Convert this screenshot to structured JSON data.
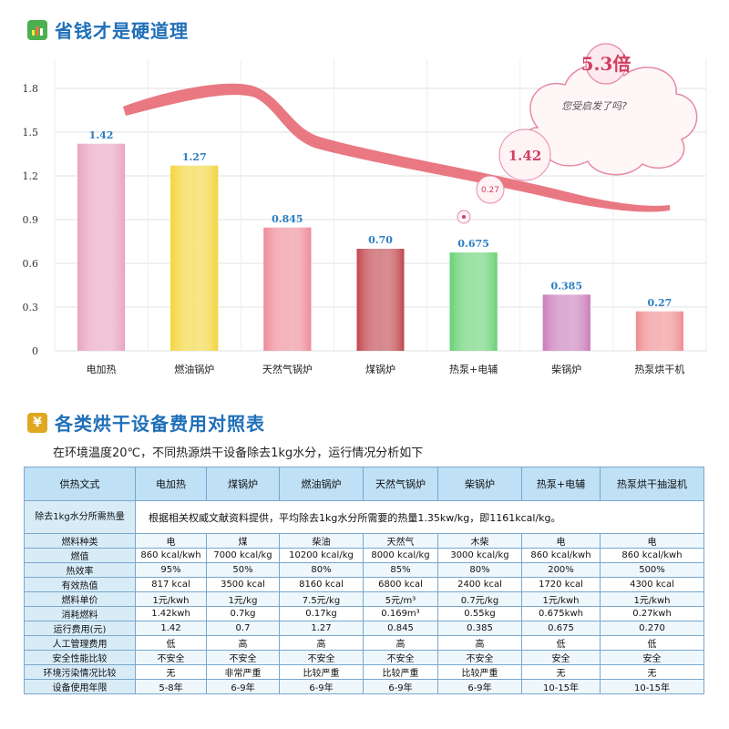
{
  "section1": {
    "title": "省钱才是硬道理",
    "icon": "bar-chart-icon"
  },
  "chart_data": {
    "type": "bar",
    "title": "",
    "xlabel": "",
    "ylabel": "",
    "ylim": [
      0,
      2.0
    ],
    "yticks": [
      0,
      0.3,
      0.6,
      0.9,
      1.2,
      1.5,
      1.8
    ],
    "categories": [
      "电加热",
      "燃油锅炉",
      "天然气锅炉",
      "煤锅炉",
      "热泵+电辅",
      "柴锅炉",
      "热泵烘干机"
    ],
    "values": [
      1.42,
      1.27,
      0.845,
      0.7,
      0.675,
      0.385,
      0.27
    ],
    "value_labels": [
      "1.42",
      "1.27",
      "0.845",
      "0.70",
      "0.675",
      "0.385",
      "0.27"
    ],
    "bar_colors": [
      "#e9a3c1",
      "#f2d53c",
      "#ee8b97",
      "#c0454c",
      "#67d173",
      "#c97cba",
      "#ef8d8f"
    ],
    "grid": true,
    "trend_curve_color": "#e8717b",
    "annotations": {
      "cloud_ratio": "5.3倍",
      "cloud_note": "您受启发了吗?",
      "circle_large": "1.42",
      "circle_small": "0.27"
    }
  },
  "section2": {
    "title": "各类烘干设备费用对照表",
    "icon": "yen-icon"
  },
  "table_intro": "在环境温度20℃，不同热源烘干设备除去1kg水分，运行情况分析如下",
  "table": {
    "header_first": "供热文式",
    "columns": [
      "电加热",
      "煤锅炉",
      "燃油锅炉",
      "天然气锅炉",
      "柴锅炉",
      "热泵+电辅",
      "热泵烘干抽湿机"
    ],
    "heat_row": {
      "label": "除去1kg水分所需热量",
      "note": "根据相关权威文献资料提供，平均除去1kg水分所需要的热量1.35kw/kg，即1161kcal/kg。"
    },
    "rows": [
      {
        "label": "燃料种类",
        "cells": [
          "电",
          "煤",
          "柴油",
          "天然气",
          "木柴",
          "电",
          "电"
        ]
      },
      {
        "label": "燃值",
        "cells": [
          "860 kcal/kwh",
          "7000 kcal/kg",
          "10200 kcal/kg",
          "8000 kcal/kg",
          "3000 kcal/kg",
          "860 kcal/kwh",
          "860 kcal/kwh"
        ]
      },
      {
        "label": "热效率",
        "cells": [
          "95%",
          "50%",
          "80%",
          "85%",
          "80%",
          "200%",
          "500%"
        ]
      },
      {
        "label": "有效热值",
        "cells": [
          "817 kcal",
          "3500 kcal",
          "8160 kcal",
          "6800 kcal",
          "2400 kcal",
          "1720 kcal",
          "4300 kcal"
        ]
      },
      {
        "label": "燃料单价",
        "cells": [
          "1元/kwh",
          "1元/kg",
          "7.5元/kg",
          "5元/m³",
          "0.7元/kg",
          "1元/kwh",
          "1元/kwh"
        ]
      },
      {
        "label": "消耗燃料",
        "cells": [
          "1.42kwh",
          "0.7kg",
          "0.17kg",
          "0.169m³",
          "0.55kg",
          "0.675kwh",
          "0.27kwh"
        ]
      },
      {
        "label": "运行费用(元)",
        "cells": [
          "1.42",
          "0.7",
          "1.27",
          "0.845",
          "0.385",
          "0.675",
          "0.270"
        ]
      },
      {
        "label": "人工管理费用",
        "cells": [
          "低",
          "高",
          "高",
          "高",
          "高",
          "低",
          "低"
        ]
      },
      {
        "label": "安全性能比较",
        "cells": [
          "不安全",
          "不安全",
          "不安全",
          "不安全",
          "不安全",
          "安全",
          "安全"
        ]
      },
      {
        "label": "环境污染情况比较",
        "cells": [
          "无",
          "非常严重",
          "比较严重",
          "比较严重",
          "比较严重",
          "无",
          "无"
        ]
      },
      {
        "label": "设备使用年限",
        "cells": [
          "5-8年",
          "6-9年",
          "6-9年",
          "6-9年",
          "6-9年",
          "10-15年",
          "10-15年"
        ]
      }
    ]
  },
  "colors": {
    "title_blue": "#1f6fb8",
    "header_bg": "#bfe0f5",
    "border": "#7aa7cc"
  }
}
